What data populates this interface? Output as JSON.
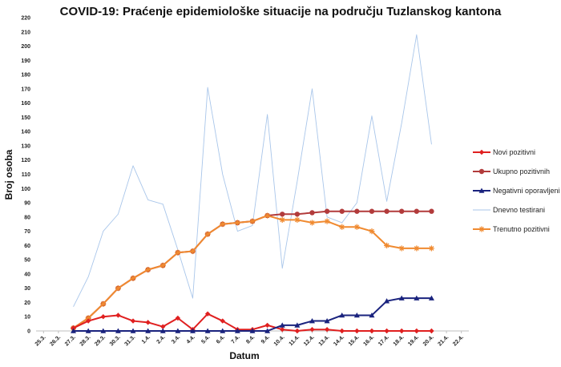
{
  "chart_data": {
    "type": "line",
    "title": "COVID-19: Praćenje epidemiološke situacije na području Tuzlanskog kantona",
    "xlabel": "Datum",
    "ylabel": "Broj osoba",
    "ylim": [
      0,
      220
    ],
    "yticks": [
      0,
      10,
      20,
      30,
      40,
      50,
      60,
      70,
      80,
      90,
      100,
      110,
      120,
      130,
      140,
      150,
      160,
      170,
      180,
      190,
      200,
      210,
      220
    ],
    "grid": false,
    "legend_position": "right",
    "categories": [
      "25.3.",
      "26.3.",
      "27.3.",
      "28.3.",
      "29.3.",
      "30.3.",
      "31.3.",
      "1.4.",
      "2.4.",
      "3.4.",
      "4.4.",
      "5.4.",
      "6.4.",
      "7.4.",
      "8.4.",
      "9.4.",
      "10.4.",
      "11.4.",
      "12.4.",
      "13.4.",
      "14.4.",
      "15.4.",
      "16.4.",
      "17.4.",
      "18.4.",
      "19.4.",
      "20.4.",
      "21.4.",
      "22.4."
    ],
    "series": [
      {
        "name": "Novi pozitivni",
        "color": "#e02020",
        "marker": "diamond",
        "values": [
          null,
          null,
          2,
          7,
          10,
          11,
          7,
          6,
          3,
          9,
          1,
          12,
          7,
          1,
          1,
          4,
          1,
          0,
          1,
          1,
          0,
          0,
          0,
          0,
          0,
          0,
          0,
          null,
          null
        ]
      },
      {
        "name": "Ukupno pozitivnih",
        "color": "#b23b3b",
        "marker": "circle",
        "values": [
          null,
          null,
          2,
          9,
          19,
          30,
          37,
          43,
          46,
          55,
          56,
          68,
          75,
          76,
          77,
          81,
          82,
          82,
          83,
          84,
          84,
          84,
          84,
          84,
          84,
          84,
          84,
          null,
          null
        ]
      },
      {
        "name": "Negativni oporavljeni",
        "color": "#1a237e",
        "marker": "triangle",
        "values": [
          null,
          null,
          0,
          0,
          0,
          0,
          0,
          0,
          0,
          0,
          0,
          0,
          0,
          0,
          0,
          0,
          4,
          4,
          7,
          7,
          11,
          11,
          11,
          21,
          23,
          23,
          23,
          null,
          null
        ]
      },
      {
        "name": "Dnevno testirani",
        "color": "#a9c6ea",
        "marker": "none",
        "values": [
          null,
          null,
          17,
          38,
          70,
          82,
          116,
          92,
          89,
          57,
          23,
          171,
          110,
          70,
          74,
          152,
          44,
          105,
          170,
          80,
          76,
          90,
          151,
          91,
          146,
          208,
          131,
          null,
          null
        ]
      },
      {
        "name": "Trenutno pozitivni",
        "color": "#f08a30",
        "marker": "star",
        "values": [
          null,
          null,
          2,
          9,
          19,
          30,
          37,
          43,
          46,
          55,
          56,
          68,
          75,
          76,
          77,
          81,
          78,
          78,
          76,
          77,
          73,
          73,
          70,
          60,
          58,
          58,
          58,
          null,
          null
        ]
      }
    ]
  }
}
